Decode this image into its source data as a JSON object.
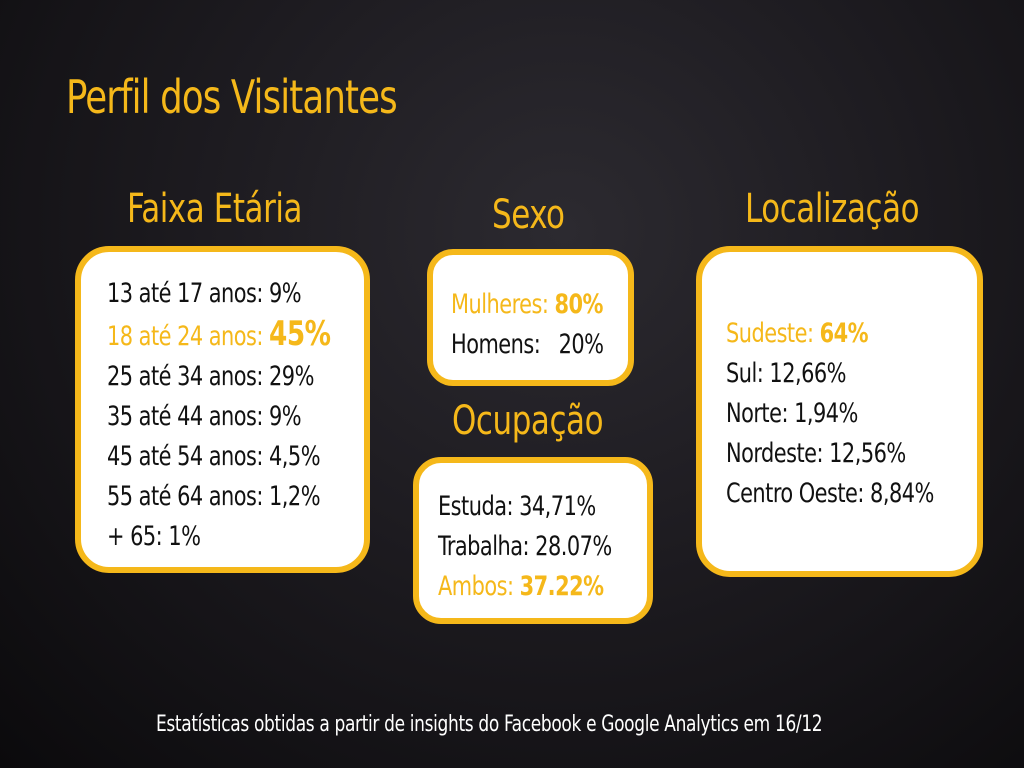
{
  "title": "Perfil dos Visitantes",
  "colors": {
    "accent": "#f5b81a",
    "card_bg": "#ffffff",
    "text": "#111111",
    "background": "#1d1b20"
  },
  "faixa_etaria": {
    "heading": "Faixa Etária",
    "items": [
      {
        "label": "13 até 17 anos:",
        "value": "9%"
      },
      {
        "label": "18 até 24 anos:",
        "value": "45%"
      },
      {
        "label": "25 até 34 anos:",
        "value": "29%"
      },
      {
        "label": "35 até 44 anos:",
        "value": "9%"
      },
      {
        "label": "45 até 54 anos:",
        "value": "4,5%"
      },
      {
        "label": "55 até 64 anos:",
        "value": "1,2%"
      },
      {
        "label": "+ 65:",
        "value": "1%"
      }
    ]
  },
  "sexo": {
    "heading": "Sexo",
    "items": [
      {
        "label": "Mulheres:",
        "value": "80%"
      },
      {
        "label": "Homens:",
        "value": "20%"
      }
    ]
  },
  "ocupacao": {
    "heading": "Ocupação",
    "items": [
      {
        "label": "Estuda:",
        "value": "34,71%"
      },
      {
        "label": "Trabalha:",
        "value": "28.07%"
      },
      {
        "label": "Ambos:",
        "value": "37.22%"
      }
    ]
  },
  "localizacao": {
    "heading": "Localização",
    "items": [
      {
        "label": "Sudeste:",
        "value": "64%"
      },
      {
        "label": "Sul:",
        "value": "12,66%"
      },
      {
        "label": "Norte:",
        "value": "1,94%"
      },
      {
        "label": "Nordeste:",
        "value": "12,56%"
      },
      {
        "label": "Centro Oeste:",
        "value": "8,84%"
      }
    ]
  },
  "footnote": "Estatísticas obtidas a partir de insights do Facebook  e Google Analytics em 16/12"
}
